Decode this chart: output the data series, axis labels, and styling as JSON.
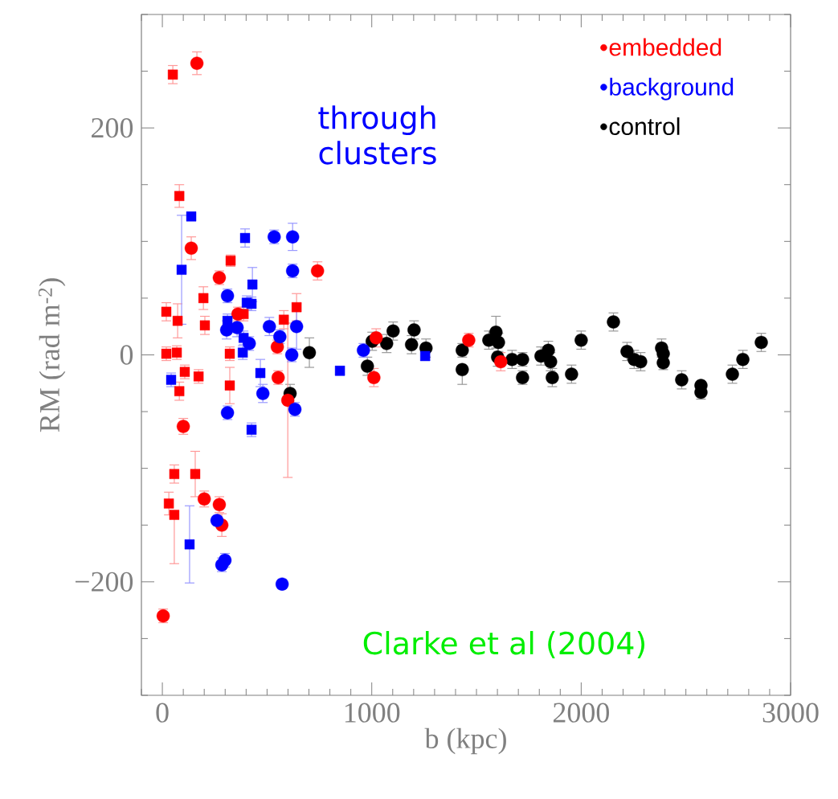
{
  "chart_data": {
    "type": "scatter",
    "xlabel": "b (kpc)",
    "ylabel": "RM (rad m$^{-2}$)",
    "xlim": [
      -100,
      3000
    ],
    "ylim": [
      -300,
      300
    ],
    "xticks": [
      0,
      1000,
      2000,
      3000
    ],
    "yticks": [
      {
        "value": -200,
        "label": "−200"
      },
      0,
      200
    ],
    "legend": "top right",
    "annotations": [
      "through clusters",
      "Clarke et al (2004)"
    ],
    "series": [
      {
        "name": "embedded",
        "color": "#ff0000",
        "marker": "circle",
        "x": [
          165,
          138,
          272,
          741,
          361,
          549,
          553,
          599,
          100,
          200,
          272,
          284,
          4,
          1021,
          1010,
          1463,
          1616
        ],
        "values": [
          257,
          94,
          68,
          74,
          36,
          7,
          -20,
          -40,
          -63,
          -127,
          -132,
          -150,
          -230,
          15,
          -20,
          13,
          -6
        ],
        "errors": [
          10,
          10,
          6,
          8,
          6,
          6,
          6,
          68,
          7,
          7,
          7,
          10,
          6,
          8,
          8,
          6,
          8
        ]
      },
      {
        "color": "#ff0000",
        "marker": "square",
        "x": [
          50,
          81,
          326,
          196,
          19,
          73,
          203,
          388,
          641,
          580,
          19,
          69,
          322,
          107,
          173,
          81,
          322,
          57,
          157,
          31,
          57
        ],
        "values": [
          247,
          140,
          83,
          50,
          38,
          30,
          26,
          36,
          42,
          31,
          1,
          2,
          1,
          -15,
          -19,
          -32,
          -27,
          -105,
          -105,
          -131,
          -141
        ],
        "errors": [
          8,
          10,
          5,
          10,
          8,
          15,
          8,
          6,
          12,
          8,
          6,
          6,
          6,
          6,
          6,
          8,
          16,
          8,
          20,
          10,
          [
            -184,
            -141
          ]
        ]
      },
      {
        "name": "background",
        "color": "#0000ff",
        "marker": "circle",
        "x": [
          534,
          622,
          622,
          311,
          511,
          307,
          357,
          415,
          561,
          641,
          618,
          480,
          311,
          633,
          261,
          284,
          299,
          572,
          960
        ],
        "values": [
          104,
          104,
          74,
          52,
          25,
          22,
          24,
          10,
          16,
          25,
          0,
          -34,
          -51,
          -48,
          -146,
          -185,
          -181,
          -202,
          4
        ],
        "errors": [
          6,
          12,
          6,
          6,
          8,
          8,
          8,
          6,
          6,
          20,
          6,
          8,
          6,
          6,
          null,
          6,
          6,
          4,
          6
        ]
      },
      {
        "color": "#0000ff",
        "marker": "square",
        "x": [
          138,
          92,
          395,
          430,
          403,
          426,
          311,
          388,
          384,
          42,
          468,
          426,
          130,
          848,
          1255
        ],
        "values": [
          122,
          75,
          103,
          62,
          46,
          45,
          30,
          15,
          2,
          -22,
          -16,
          -66,
          -167,
          -14,
          -1
        ],
        "errors": [
          3,
          48,
          8,
          15,
          6,
          6,
          6,
          6,
          6,
          6,
          12,
          6,
          34,
          4,
          4
        ]
      },
      {
        "name": "control",
        "color": "#000000",
        "marker": "circle",
        "x": [
          702,
          610,
          1002,
          979,
          1102,
          1071,
          1202,
          1190,
          1259,
          1432,
          1432,
          1593,
          1559,
          1605,
          1601,
          1670,
          1720,
          1720,
          1808,
          1843,
          1854,
          1862,
          1954,
          2000,
          2154,
          2219,
          2253,
          2284,
          2384,
          2392,
          2392,
          2480,
          2572,
          2572,
          2722,
          2772,
          2860
        ],
        "values": [
          2,
          -34,
          12,
          -10,
          21,
          10,
          22,
          9,
          6,
          4,
          -13,
          20,
          13,
          11,
          -2,
          -4,
          -4,
          -20,
          -1,
          4,
          -6,
          -20,
          -17,
          13,
          29,
          3,
          -4,
          -6,
          6,
          1,
          -7,
          -22,
          -27,
          -33,
          -17,
          -4,
          11
        ],
        "errors": [
          13,
          8,
          8,
          8,
          8,
          8,
          8,
          8,
          8,
          6,
          [
            -26,
            -13
          ],
          14,
          8,
          8,
          8,
          8,
          6,
          6,
          8,
          8,
          8,
          8,
          8,
          8,
          8,
          8,
          8,
          8,
          8,
          null,
          6,
          8,
          null,
          6,
          8,
          8,
          8
        ]
      }
    ]
  }
}
